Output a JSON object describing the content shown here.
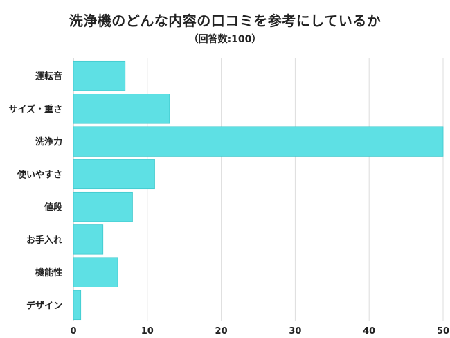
{
  "chart_data": {
    "type": "bar",
    "orientation": "horizontal",
    "title": "洗浄機のどんな内容の口コミを参考にしているか",
    "subtitle": "（回答数:100）",
    "categories": [
      "運転音",
      "サイズ・重さ",
      "洗浄力",
      "使いやすさ",
      "値段",
      "お手入れ",
      "機能性",
      "デザイン"
    ],
    "values": [
      7,
      13,
      50,
      11,
      8,
      4,
      6,
      1
    ],
    "xlim": [
      0,
      50
    ],
    "xticks": [
      0,
      10,
      20,
      30,
      40,
      50
    ],
    "xlabel": "",
    "ylabel": "",
    "grid": true,
    "bar_color": "#5ee0e4",
    "bar_border_color": "#3fc9cd",
    "grid_color": "#dddddd"
  }
}
